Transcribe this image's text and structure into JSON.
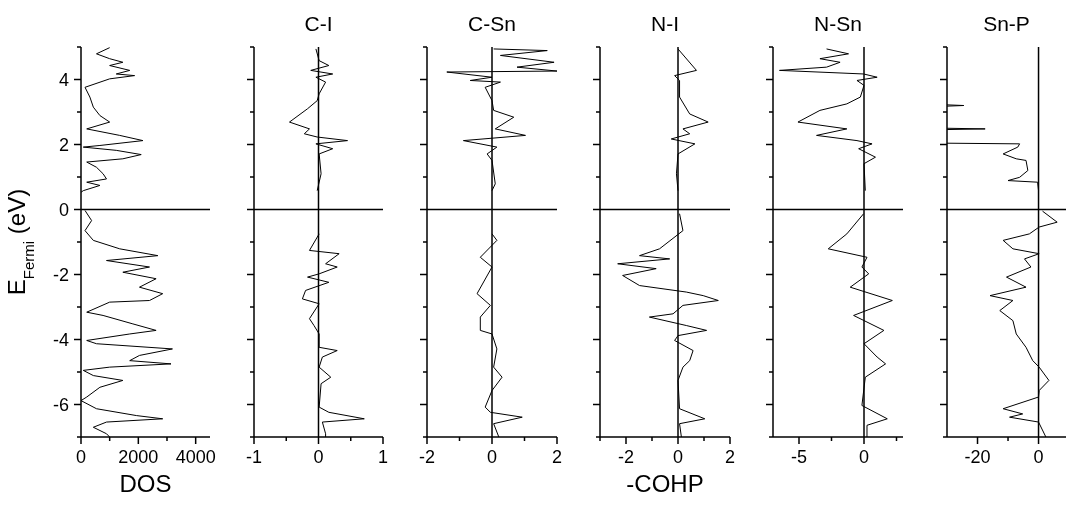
{
  "chart_data": [
    {
      "type": "line",
      "xlabel": "DOS",
      "ylabel": "E$_{Fermi}$ (eV)",
      "xlim": [
        0,
        4500
      ],
      "ylim": [
        -7,
        5
      ],
      "xticks": [
        0,
        {
          "value": 1000,
          "label": null
        },
        2000,
        {
          "value": 3000,
          "label": null
        },
        4000
      ],
      "yticks": [
        {
          "value": -7,
          "label": null
        },
        -6,
        {
          "value": -5,
          "label": null
        },
        -4,
        {
          "value": -3,
          "label": null
        },
        -2,
        {
          "value": -1,
          "label": null
        },
        0,
        {
          "value": 1,
          "label": null
        },
        2,
        {
          "value": 3,
          "label": null
        },
        4,
        {
          "value": 5,
          "label": null
        }
      ],
      "ref_lines": [
        {
          "axis": "y",
          "value": 0
        }
      ],
      "series": [
        {
          "color": "#000000",
          "x": [
            1000,
            540,
            1000,
            1460,
            1000,
            1700,
            1230,
            1870,
            1000,
            140,
            310,
            430,
            660,
            1000,
            200,
            1350,
            2160,
            660,
            80,
            1230,
            2100,
            1460,
            200,
            540,
            770,
            890,
            200,
            660,
            80,
            0,
            null,
            140,
            370,
            140,
            430,
            1350,
            2680,
            890,
            2390,
            1460,
            2620,
            2040,
            2850,
            2390,
            1000,
            200,
            770,
            1810,
            2620,
            1700,
            200,
            540,
            3190,
            2040,
            1700,
            3140,
            1000,
            80,
            430,
            1460,
            660,
            200,
            0,
            540,
            1930,
            2850,
            890,
            430,
            890,
            1000
          ],
          "values": [
            4.98,
            4.79,
            4.64,
            4.53,
            4.43,
            4.28,
            4.17,
            4.12,
            4.02,
            3.76,
            3.46,
            3.15,
            2.89,
            2.69,
            2.48,
            2.28,
            2.12,
            1.97,
            1.92,
            1.82,
            1.69,
            1.56,
            1.46,
            1.3,
            1.1,
            0.94,
            0.84,
            0.74,
            0.58,
            0.53,
            null,
            -0.03,
            -0.34,
            -0.65,
            -0.95,
            -1.21,
            -1.42,
            -1.57,
            -1.77,
            -1.93,
            -2.13,
            -2.39,
            -2.59,
            -2.8,
            -2.85,
            -3.16,
            -3.26,
            -3.52,
            -3.72,
            -3.83,
            -4.03,
            -4.13,
            -4.29,
            -4.49,
            -4.65,
            -4.75,
            -4.85,
            -4.95,
            -5.11,
            -5.26,
            -5.47,
            -5.77,
            -5.88,
            -6.13,
            -6.34,
            -6.44,
            -6.54,
            -6.7,
            -6.9,
            -7.0
          ]
        }
      ]
    },
    {
      "type": "line",
      "title": "C-I",
      "xlim": [
        -1,
        1
      ],
      "ylim": [
        -7,
        5
      ],
      "tick_labels": "x",
      "xticks": [
        -1,
        {
          "value": -0.5,
          "label": null
        },
        0,
        {
          "value": 0.5,
          "label": null
        },
        1
      ],
      "yticks": [
        {
          "value": -7,
          "label": null
        },
        -6,
        {
          "value": -5,
          "label": null
        },
        -4,
        {
          "value": -3,
          "label": null
        },
        -2,
        {
          "value": -1,
          "label": null
        },
        0,
        {
          "value": 1,
          "label": null
        },
        2,
        {
          "value": 3,
          "label": null
        },
        4,
        {
          "value": 5,
          "label": null
        }
      ],
      "ref_lines": [
        {
          "axis": "y",
          "value": 0
        },
        {
          "axis": "x",
          "value": 0
        }
      ],
      "series": [
        {
          "color": "#000000",
          "x": [
            -0.04,
            0.01,
            0.16,
            -0.12,
            0.22,
            -0.04,
            0.11,
            0.01,
            -0.02,
            -0.17,
            -0.45,
            -0.14,
            -0.22,
            -0.02,
            0.45,
            -0.04,
            0.22,
            0.01,
            0.04,
            -0.02,
            null,
            0.01,
            -0.14,
            0.32,
            0.11,
            0.29,
            0.01,
            -0.17,
            0.16,
            -0.2,
            -0.25,
            0.01,
            -0.14,
            -0.07,
            0.01,
            0.01,
            0.29,
            0.06,
            0.01,
            0.19,
            0.04,
            0.01,
            0.16,
            0.71,
            0.06,
            0.11,
            0.11
          ],
          "values": [
            4.94,
            4.58,
            4.43,
            4.28,
            4.17,
            4.07,
            3.92,
            3.56,
            3.35,
            3.1,
            2.69,
            2.48,
            2.33,
            2.23,
            2.12,
            2.02,
            1.87,
            1.71,
            1.1,
            0.58,
            null,
            -0.75,
            -1.26,
            -1.36,
            -1.67,
            -1.77,
            -1.98,
            -2.08,
            -2.24,
            -2.49,
            -2.75,
            -2.9,
            -3.36,
            -3.57,
            -3.83,
            -4.24,
            -4.34,
            -4.54,
            -4.85,
            -5.16,
            -5.36,
            -6.08,
            -6.24,
            -6.44,
            -6.54,
            -6.9,
            -7.0
          ]
        }
      ]
    },
    {
      "type": "line",
      "title": "C-Sn",
      "xlim": [
        -2,
        2
      ],
      "ylim": [
        -7,
        5
      ],
      "tick_labels": "x",
      "xticks": [
        -2,
        {
          "value": -1,
          "label": null
        },
        0,
        {
          "value": 1,
          "label": null
        },
        2
      ],
      "yticks": [
        {
          "value": -7,
          "label": null
        },
        -6,
        {
          "value": -5,
          "label": null
        },
        -4,
        {
          "value": -3,
          "label": null
        },
        -2,
        {
          "value": -1,
          "label": null
        },
        0,
        {
          "value": 1,
          "label": null
        },
        2,
        {
          "value": 3,
          "label": null
        },
        4,
        {
          "value": 5,
          "label": null
        }
      ],
      "ref_lines": [
        {
          "axis": "y",
          "value": 0
        },
        {
          "axis": "x",
          "value": 0
        }
      ],
      "series": [
        {
          "color": "#000000",
          "x": [
            0.05,
            1.7,
            0.26,
            1.91,
            0.77,
            2.0,
            -1.39,
            0,
            -0.67,
            0.26,
            -0.21,
            0,
            0.05,
            0.67,
            0.1,
            1.03,
            -0.88,
            0.15,
            -0.15,
            0,
            0.1,
            0,
            null,
            0,
            0.15,
            -0.36,
            0,
            -0.46,
            -0.05,
            -0.36,
            -0.36,
            0,
            0.15,
            0.05,
            0.31,
            0,
            -0.21,
            -0.05,
            0.93,
            0.05,
            0.21
          ],
          "values": [
            4.94,
            4.89,
            4.74,
            4.53,
            4.38,
            4.26,
            4.23,
            4.07,
            3.97,
            3.92,
            3.76,
            3.35,
            3.05,
            2.84,
            2.48,
            2.28,
            2.12,
            1.92,
            1.71,
            1.51,
            0.79,
            0.58,
            null,
            -0.75,
            -0.95,
            -1.47,
            -1.77,
            -2.59,
            -2.95,
            -3.31,
            -3.72,
            -3.83,
            -4.29,
            -4.85,
            -5.16,
            -5.57,
            -6.08,
            -6.24,
            -6.39,
            -6.59,
            -7.0
          ]
        }
      ]
    },
    {
      "type": "line",
      "title": "N-I",
      "xlabel": "-COHP",
      "xlim": [
        -3,
        2
      ],
      "ylim": [
        -7,
        5
      ],
      "tick_labels": "x",
      "xticks": [
        {
          "value": -3,
          "label": null
        },
        -2,
        {
          "value": -1,
          "label": null
        },
        0,
        {
          "value": 1,
          "label": null
        },
        2
      ],
      "yticks": [
        {
          "value": -7,
          "label": null
        },
        -6,
        {
          "value": -5,
          "label": null
        },
        -4,
        {
          "value": -3,
          "label": null
        },
        -2,
        {
          "value": -1,
          "label": null
        },
        0,
        {
          "value": 1,
          "label": null
        },
        2,
        {
          "value": 3,
          "label": null
        },
        4,
        {
          "value": 5,
          "label": null
        }
      ],
      "ref_lines": [
        {
          "axis": "y",
          "value": 0
        },
        {
          "axis": "x",
          "value": 0
        }
      ],
      "series": [
        {
          "color": "#000000",
          "x": [
            0,
            0.71,
            -0.13,
            0.06,
            0.06,
            0.45,
            1.16,
            0.19,
            0.45,
            -0.26,
            0.65,
            0,
            -0.06,
            0,
            null,
            0.06,
            0.19,
            -0.71,
            -1.48,
            -0.32,
            -2.32,
            -0.84,
            -2.13,
            -1.48,
            0.32,
            0.97,
            1.55,
            0.19,
            -0.19,
            -1.1,
            0.32,
            1.1,
            0,
            -0.13,
            0.58,
            0.45,
            0.19,
            0,
            0.06,
            1.03,
            0.06,
            0.13
          ],
          "values": [
            4.94,
            4.28,
            4.12,
            3.97,
            3.46,
            2.94,
            2.69,
            2.48,
            2.33,
            2.17,
            2.02,
            1.71,
            1.1,
            0.58,
            null,
            -0.13,
            -0.65,
            -1.21,
            -1.42,
            -1.52,
            -1.67,
            -1.82,
            -2.03,
            -2.34,
            -2.54,
            -2.65,
            -2.8,
            -2.95,
            -3.21,
            -3.31,
            -3.57,
            -3.72,
            -3.88,
            -4.03,
            -4.34,
            -4.65,
            -4.85,
            -5.26,
            -6.13,
            -6.44,
            -6.59,
            -7.0
          ]
        }
      ]
    },
    {
      "type": "line",
      "title": "N-Sn",
      "xlim": [
        -7,
        3
      ],
      "ylim": [
        -7,
        5
      ],
      "tick_labels": "x",
      "xticks": [
        -5,
        {
          "value": -2.5,
          "label": null
        },
        0,
        {
          "value": 2.5,
          "label": null
        }
      ],
      "yticks": [
        {
          "value": -7,
          "label": null
        },
        -6,
        {
          "value": -5,
          "label": null
        },
        -4,
        {
          "value": -3,
          "label": null
        },
        -2,
        {
          "value": -1,
          "label": null
        },
        0,
        {
          "value": 1,
          "label": null
        },
        2,
        {
          "value": 3,
          "label": null
        },
        4,
        {
          "value": 5,
          "label": null
        }
      ],
      "ref_lines": [
        {
          "axis": "y",
          "value": 0
        },
        {
          "axis": "x",
          "value": 0
        }
      ],
      "series": [
        {
          "color": "#000000",
          "x": [
            -2.88,
            -1.19,
            -3.39,
            -1.84,
            -2.88,
            -6.5,
            -0.03,
            1.01,
            -0.54,
            0,
            -0.28,
            -1.32,
            -3.39,
            -5.08,
            -1.32,
            -3.65,
            -0.54,
            0.62,
            -0.41,
            0.88,
            0,
            0.1,
            null,
            -0.03,
            -1.32,
            -2.75,
            0.23,
            -0.16,
            0.36,
            -1.06,
            2.18,
            -0.8,
            1.53,
            0,
            1.01,
            1.66,
            0.1,
            -0.16,
            1.79,
            0.23,
            0.23
          ],
          "values": [
            4.94,
            4.79,
            4.64,
            4.53,
            4.38,
            4.28,
            4.17,
            4.07,
            3.97,
            3.82,
            3.46,
            3.25,
            3.05,
            2.69,
            2.48,
            2.28,
            2.12,
            2.02,
            1.87,
            1.61,
            1.41,
            0.58,
            null,
            -0.13,
            -0.75,
            -1.21,
            -1.47,
            -1.77,
            -1.98,
            -2.39,
            -2.8,
            -3.26,
            -3.72,
            -4.13,
            -4.54,
            -4.75,
            -5.16,
            -6.03,
            -6.44,
            -6.64,
            -7.0
          ]
        }
      ]
    },
    {
      "type": "line",
      "title": "Sn-P",
      "xlim": [
        -30,
        9
      ],
      "ylim": [
        -7,
        5
      ],
      "tick_labels": "x",
      "xticks": [
        -20,
        {
          "value": -10,
          "label": null
        },
        0
      ],
      "yticks": [
        {
          "value": -7,
          "label": null
        },
        -6,
        {
          "value": -5,
          "label": null
        },
        -4,
        {
          "value": -3,
          "label": null
        },
        -2,
        {
          "value": -1,
          "label": null
        },
        0,
        {
          "value": 1,
          "label": null
        },
        2,
        {
          "value": 3,
          "label": null
        },
        4,
        {
          "value": 5,
          "label": null
        }
      ],
      "ref_lines": [
        {
          "axis": "y",
          "value": 0
        },
        {
          "axis": "x",
          "value": 0
        }
      ],
      "series": [
        {
          "color": "#000000",
          "x": [
            -30,
            -24.5,
            -30,
            null,
            -30,
            -17.5,
            -30,
            null,
            -30,
            -6.2,
            -6.8,
            -11.6,
            -7.3,
            -4.1,
            -3.5,
            -6.2,
            -10.0,
            -0.3,
            0,
            null,
            1.3,
            6.1,
            0.2,
            -3.0,
            -11.6,
            -8.4,
            0.2,
            -4.6,
            -2.5,
            -10.5,
            -4.1,
            -15.9,
            -8.4,
            -12.7,
            -8.4,
            -7.3,
            -4.1,
            -1.9,
            0.2,
            3.4,
            0.2,
            0,
            -11.6,
            -5.2,
            -9.5,
            0,
            2.4
          ],
          "values": [
            3.22,
            3.2,
            3.18,
            null,
            2.5,
            2.48,
            2.46,
            null,
            2.04,
            2.02,
            1.92,
            1.71,
            1.56,
            1.51,
            1.2,
            0.99,
            0.89,
            0.84,
            0.58,
            null,
            -0.05,
            -0.39,
            -0.54,
            -0.75,
            -0.95,
            -1.21,
            -1.36,
            -1.52,
            -1.77,
            -2.08,
            -2.39,
            -2.65,
            -2.8,
            -3.11,
            -3.42,
            -3.83,
            -4.24,
            -4.65,
            -4.85,
            -5.26,
            -5.57,
            -5.77,
            -6.13,
            -6.29,
            -6.39,
            -6.54,
            -7.0
          ]
        }
      ]
    }
  ]
}
